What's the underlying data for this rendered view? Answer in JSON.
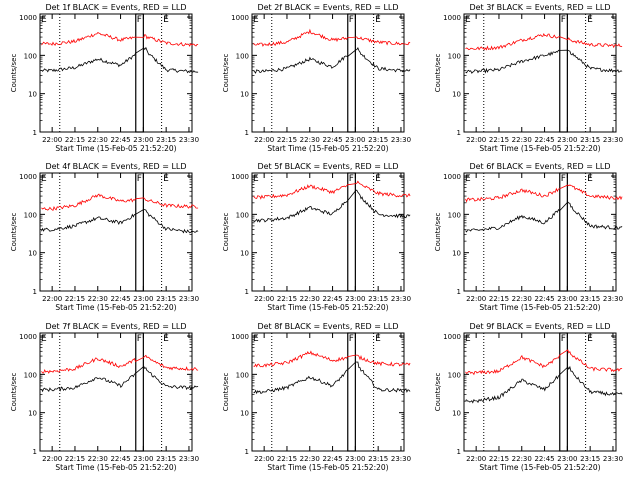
{
  "figure": {
    "panel_title_suffix": "BLACK = Events, RED = LLD",
    "xlabel": "Start Time (15-Feb-05 21:52:20)",
    "ylabel": "Counts/sec",
    "x_ticks": [
      "22:00",
      "22:15",
      "22:30",
      "22:45",
      "23:00",
      "23:15",
      "23:30"
    ],
    "y_ticks": [
      "1",
      "10",
      "100",
      "1000"
    ],
    "flag_labels": [
      "E",
      "F",
      "E"
    ],
    "colors": {
      "events": "#000000",
      "lld": "#ff0000",
      "axes": "#000000"
    }
  },
  "chart_data": [
    {
      "type": "line",
      "title": "Det 1f BLACK = Events, RED = LLD",
      "xlabel": "Start Time (15-Feb-05 21:52:20)",
      "ylabel": "Counts/sec",
      "x": [
        "22:00",
        "22:15",
        "22:30",
        "22:45",
        "23:00",
        "23:15",
        "23:30"
      ],
      "ylim": [
        1,
        1200
      ],
      "yscale": "log",
      "series": [
        {
          "name": "Events",
          "color": "#000000",
          "values": [
            40,
            48,
            80,
            55,
            150,
            42,
            38
          ]
        },
        {
          "name": "LLD",
          "color": "#ff0000",
          "values": [
            200,
            230,
            380,
            250,
            320,
            210,
            190
          ]
        }
      ]
    },
    {
      "type": "line",
      "title": "Det 2f BLACK = Events, RED = LLD",
      "xlabel": "Start Time (15-Feb-05 21:52:20)",
      "ylabel": "Counts/sec",
      "x": [
        "22:00",
        "22:15",
        "22:30",
        "22:45",
        "23:00",
        "23:15",
        "23:30"
      ],
      "ylim": [
        1,
        1200
      ],
      "yscale": "log",
      "series": [
        {
          "name": "Events",
          "color": "#000000",
          "values": [
            38,
            45,
            80,
            50,
            150,
            45,
            40
          ]
        },
        {
          "name": "LLD",
          "color": "#ff0000",
          "values": [
            190,
            220,
            420,
            250,
            300,
            220,
            200
          ]
        }
      ]
    },
    {
      "type": "line",
      "title": "Det 3f BLACK = Events, RED = LLD",
      "xlabel": "Start Time (15-Feb-05 21:52:20)",
      "ylabel": "Counts/sec",
      "x": [
        "22:00",
        "22:15",
        "22:30",
        "22:45",
        "23:00",
        "23:15",
        "23:30"
      ],
      "ylim": [
        1,
        1200
      ],
      "yscale": "log",
      "series": [
        {
          "name": "Events",
          "color": "#000000",
          "values": [
            38,
            42,
            70,
            100,
            140,
            45,
            40
          ]
        },
        {
          "name": "LLD",
          "color": "#ff0000",
          "values": [
            150,
            160,
            250,
            350,
            260,
            190,
            180
          ]
        }
      ]
    },
    {
      "type": "line",
      "title": "Det 4f BLACK = Events, RED = LLD",
      "xlabel": "Start Time (15-Feb-05 21:52:20)",
      "ylabel": "Counts/sec",
      "x": [
        "22:00",
        "22:15",
        "22:30",
        "22:45",
        "23:00",
        "23:15",
        "23:30"
      ],
      "ylim": [
        1,
        1200
      ],
      "yscale": "log",
      "series": [
        {
          "name": "Events",
          "color": "#000000",
          "values": [
            40,
            50,
            80,
            60,
            130,
            42,
            35
          ]
        },
        {
          "name": "LLD",
          "color": "#ff0000",
          "values": [
            140,
            170,
            320,
            220,
            250,
            170,
            160
          ]
        }
      ]
    },
    {
      "type": "line",
      "title": "Det 5f BLACK = Events, RED = LLD",
      "xlabel": "Start Time (15-Feb-05 21:52:20)",
      "ylabel": "Counts/sec",
      "x": [
        "22:00",
        "22:15",
        "22:30",
        "22:45",
        "23:00",
        "23:15",
        "23:30"
      ],
      "ylim": [
        1,
        1200
      ],
      "yscale": "log",
      "series": [
        {
          "name": "Events",
          "color": "#000000",
          "values": [
            70,
            80,
            150,
            100,
            400,
            100,
            90
          ]
        },
        {
          "name": "LLD",
          "color": "#ff0000",
          "values": [
            280,
            320,
            550,
            380,
            700,
            350,
            310
          ]
        }
      ]
    },
    {
      "type": "line",
      "title": "Det 6f BLACK = Events, RED = LLD",
      "xlabel": "Start Time (15-Feb-05 21:52:20)",
      "ylabel": "Counts/sec",
      "x": [
        "22:00",
        "22:15",
        "22:30",
        "22:45",
        "23:00",
        "23:15",
        "23:30"
      ],
      "ylim": [
        1,
        1200
      ],
      "yscale": "log",
      "series": [
        {
          "name": "Events",
          "color": "#000000",
          "values": [
            38,
            45,
            90,
            60,
            200,
            50,
            45
          ]
        },
        {
          "name": "LLD",
          "color": "#ff0000",
          "values": [
            240,
            270,
            430,
            300,
            600,
            300,
            270
          ]
        }
      ]
    },
    {
      "type": "line",
      "title": "Det 7f BLACK = Events, RED = LLD",
      "xlabel": "Start Time (15-Feb-05 21:52:20)",
      "ylabel": "Counts/sec",
      "x": [
        "22:00",
        "22:15",
        "22:30",
        "22:45",
        "23:00",
        "23:15",
        "23:30"
      ],
      "ylim": [
        1,
        1200
      ],
      "yscale": "log",
      "series": [
        {
          "name": "Events",
          "color": "#000000",
          "values": [
            40,
            45,
            85,
            50,
            150,
            48,
            45
          ]
        },
        {
          "name": "LLD",
          "color": "#ff0000",
          "values": [
            120,
            140,
            260,
            160,
            300,
            150,
            140
          ]
        }
      ]
    },
    {
      "type": "line",
      "title": "Det 8f BLACK = Events, RED = LLD",
      "xlabel": "Start Time (15-Feb-05 21:52:20)",
      "ylabel": "Counts/sec",
      "x": [
        "22:00",
        "22:15",
        "22:30",
        "22:45",
        "23:00",
        "23:15",
        "23:30"
      ],
      "ylim": [
        1,
        1200
      ],
      "yscale": "log",
      "series": [
        {
          "name": "Events",
          "color": "#000000",
          "values": [
            35,
            45,
            85,
            50,
            200,
            40,
            38
          ]
        },
        {
          "name": "LLD",
          "color": "#ff0000",
          "values": [
            170,
            200,
            370,
            230,
            300,
            190,
            180
          ]
        }
      ]
    },
    {
      "type": "line",
      "title": "Det 9f BLACK = Events, RED = LLD",
      "xlabel": "Start Time (15-Feb-05 21:52:20)",
      "ylabel": "Counts/sec",
      "x": [
        "22:00",
        "22:15",
        "22:30",
        "22:45",
        "23:00",
        "23:15",
        "23:30"
      ],
      "ylim": [
        1,
        1200
      ],
      "yscale": "log",
      "series": [
        {
          "name": "Events",
          "color": "#000000",
          "values": [
            20,
            25,
            70,
            40,
            150,
            35,
            30
          ]
        },
        {
          "name": "LLD",
          "color": "#ff0000",
          "values": [
            110,
            120,
            280,
            160,
            400,
            140,
            130
          ]
        }
      ]
    }
  ]
}
